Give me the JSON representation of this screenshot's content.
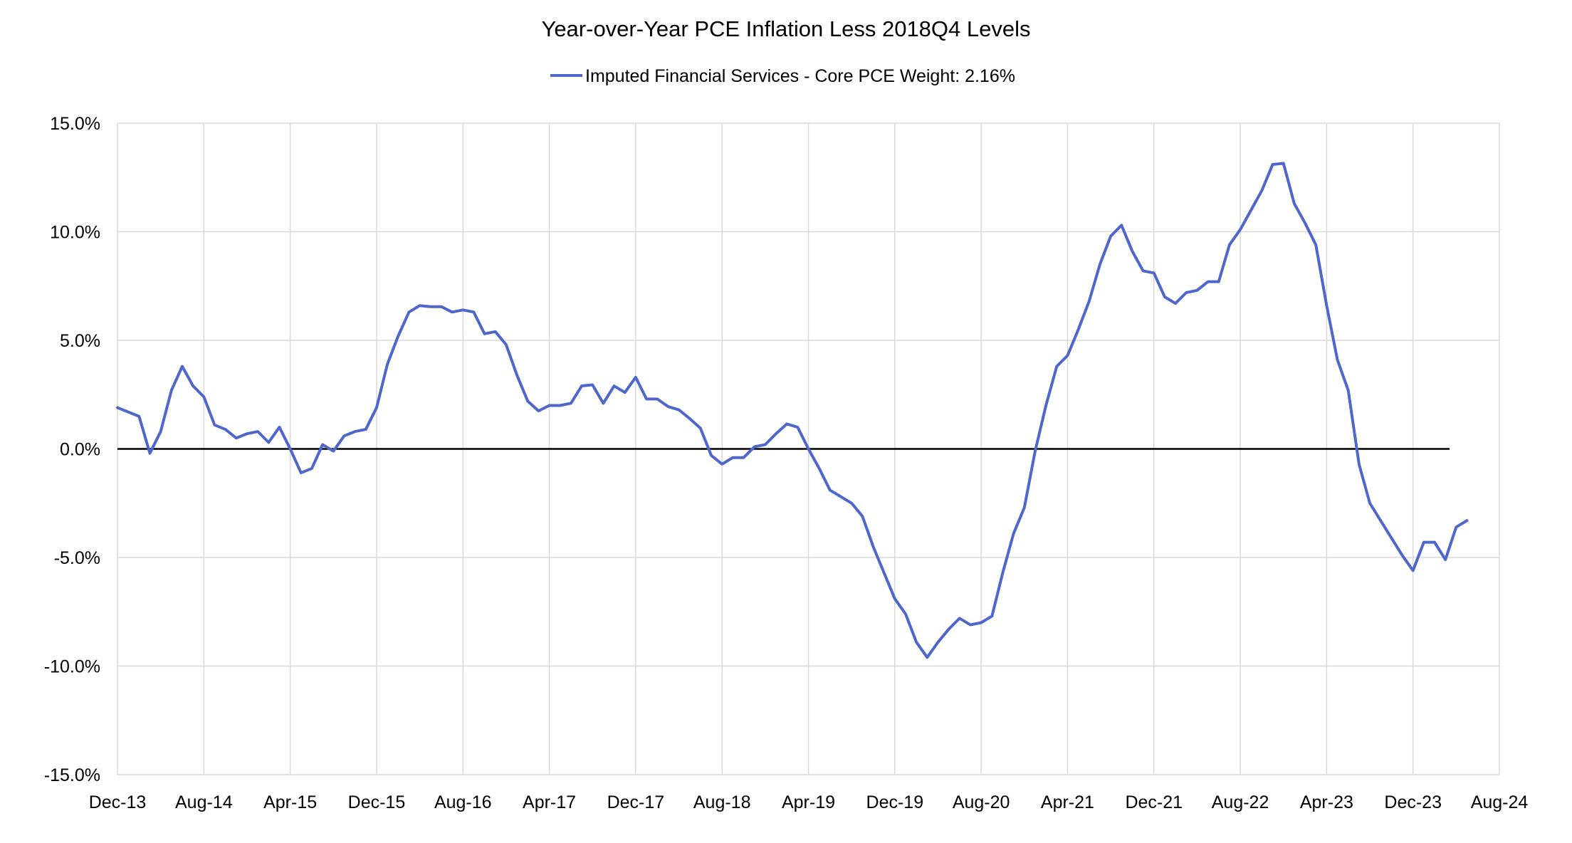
{
  "chart_data": {
    "type": "line",
    "title": "Year-over-Year PCE Inflation Less 2018Q4 Levels",
    "xlabel": "",
    "ylabel": "",
    "ylim": [
      -15,
      15
    ],
    "yticks": [
      15,
      10,
      5,
      0,
      -5,
      -10,
      -15
    ],
    "ytick_labels": [
      "15.0%",
      "10.0%",
      "5.0%",
      "0.0%",
      "-5.0%",
      "-10.0%",
      "-15.0%"
    ],
    "xtick_labels": [
      "Dec-13",
      "Aug-14",
      "Apr-15",
      "Dec-15",
      "Aug-16",
      "Apr-17",
      "Dec-17",
      "Aug-18",
      "Apr-19",
      "Dec-19",
      "Aug-20",
      "Apr-21",
      "Dec-21",
      "Aug-22",
      "Apr-23",
      "Dec-23",
      "Aug-24"
    ],
    "x_start": "Dec-13",
    "x_months": 128,
    "legend_position": "top-center",
    "grid": true,
    "series": [
      {
        "name": "Imputed Financial Services - Core PCE Weight: 2.16%",
        "color": "#4F66CC",
        "values": [
          1.9,
          1.7,
          1.5,
          -0.2,
          0.8,
          2.7,
          3.8,
          2.9,
          2.4,
          1.1,
          0.9,
          0.5,
          0.7,
          0.8,
          0.3,
          1.0,
          0.0,
          -1.1,
          -0.9,
          0.2,
          -0.1,
          0.6,
          0.8,
          0.9,
          1.9,
          3.9,
          5.2,
          6.3,
          6.6,
          6.55,
          6.55,
          6.3,
          6.4,
          6.3,
          5.3,
          5.4,
          4.8,
          3.4,
          2.2,
          1.75,
          2.0,
          2.0,
          2.1,
          2.9,
          2.95,
          2.1,
          2.9,
          2.6,
          3.3,
          2.3,
          2.3,
          1.95,
          1.8,
          1.4,
          0.95,
          -0.3,
          -0.7,
          -0.4,
          -0.4,
          0.1,
          0.2,
          0.7,
          1.15,
          1.0,
          0.0,
          -0.9,
          -1.9,
          -2.2,
          -2.5,
          -3.1,
          -4.5,
          -5.7,
          -6.9,
          -7.6,
          -8.9,
          -9.6,
          -8.9,
          -8.3,
          -7.8,
          -8.1,
          -8.0,
          -7.7,
          -5.7,
          -3.9,
          -2.7,
          -0.1,
          2.0,
          3.8,
          4.3,
          5.5,
          6.8,
          8.5,
          9.8,
          10.3,
          9.1,
          8.2,
          8.1,
          7.0,
          6.7,
          7.2,
          7.3,
          7.7,
          7.7,
          9.4,
          10.1,
          11.0,
          11.9,
          13.1,
          13.15,
          11.3,
          10.4,
          9.4,
          6.6,
          4.1,
          2.7,
          -0.7,
          -2.5,
          -3.3,
          -4.1,
          -4.9,
          -5.6,
          -4.3,
          -4.3,
          -5.1,
          -3.6,
          -3.3
        ]
      }
    ]
  }
}
